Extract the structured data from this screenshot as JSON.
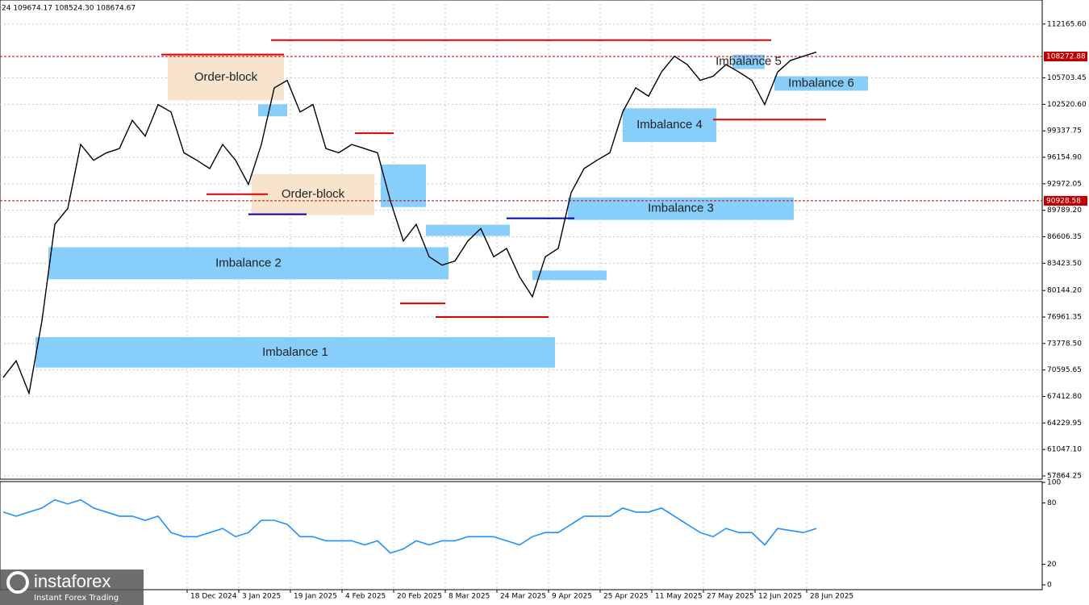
{
  "header_text": "24 109674.17 108524.30 108674.67",
  "logo": {
    "name": "instaforex",
    "tagline": "Instant Forex Trading"
  },
  "chart_data": [
    {
      "type": "line",
      "xlim": [
        "2024-10-21",
        "2025-09-09"
      ],
      "xticks": [
        {
          "value": "2024-12-18",
          "label": "18 Dec 2024"
        },
        {
          "value": "2025-01-03",
          "label": "3 Jan 2025"
        },
        {
          "value": "2025-01-19",
          "label": "19 Jan 2025"
        },
        {
          "value": "2025-02-04",
          "label": "4 Feb 2025"
        },
        {
          "value": "2025-02-20",
          "label": "20 Feb 2025"
        },
        {
          "value": "2025-03-08",
          "label": "8 Mar 2025"
        },
        {
          "value": "2025-03-24",
          "label": "24 Mar 2025"
        },
        {
          "value": "2025-04-09",
          "label": "9 Apr 2025"
        },
        {
          "value": "2025-04-25",
          "label": "25 Apr 2025"
        },
        {
          "value": "2025-05-11",
          "label": "11 May 2025"
        },
        {
          "value": "2025-05-27",
          "label": "27 May 2025"
        },
        {
          "value": "2025-06-12",
          "label": "12 Jun 2025"
        },
        {
          "value": "2025-06-28",
          "label": "28 Jun 2025"
        }
      ],
      "ylim": [
        57478,
        115059
      ],
      "yticks": [
        {
          "value": 112165.6,
          "label": "112165.60"
        },
        {
          "value": 105703.45,
          "label": "105703.45"
        },
        {
          "value": 102520.6,
          "label": "102520.60"
        },
        {
          "value": 99337.75,
          "label": "99337.75"
        },
        {
          "value": 96154.9,
          "label": "96154.90"
        },
        {
          "value": 92972.05,
          "label": "92972.05"
        },
        {
          "value": 89789.2,
          "label": "89789.20"
        },
        {
          "value": 86606.35,
          "label": "86606.35"
        },
        {
          "value": 83423.5,
          "label": "83423.50"
        },
        {
          "value": 80144.2,
          "label": "80144.20"
        },
        {
          "value": 76961.35,
          "label": "76961.35"
        },
        {
          "value": 73778.5,
          "label": "73778.50"
        },
        {
          "value": 70595.65,
          "label": "70595.65"
        },
        {
          "value": 67412.8,
          "label": "67412.80"
        },
        {
          "value": 64229.95,
          "label": "64229.95"
        },
        {
          "value": 61047.1,
          "label": "61047.10"
        },
        {
          "value": 57864.25,
          "label": "57864.25"
        }
      ],
      "grid": true,
      "x": [
        "2024-10-22",
        "2024-10-26",
        "2024-10-30",
        "2024-11-03",
        "2024-11-07",
        "2024-11-11",
        "2024-11-15",
        "2024-11-19",
        "2024-11-23",
        "2024-11-27",
        "2024-12-01",
        "2024-12-05",
        "2024-12-09",
        "2024-12-13",
        "2024-12-17",
        "2024-12-21",
        "2024-12-25",
        "2024-12-29",
        "2025-01-02",
        "2025-01-06",
        "2025-01-10",
        "2025-01-14",
        "2025-01-18",
        "2025-01-22",
        "2025-01-26",
        "2025-01-30",
        "2025-02-03",
        "2025-02-07",
        "2025-02-11",
        "2025-02-15",
        "2025-02-19",
        "2025-02-23",
        "2025-02-27",
        "2025-03-03",
        "2025-03-07",
        "2025-03-11",
        "2025-03-15",
        "2025-03-19",
        "2025-03-23",
        "2025-03-27",
        "2025-03-31",
        "2025-04-04",
        "2025-04-08",
        "2025-04-12",
        "2025-04-16",
        "2025-04-20",
        "2025-04-24",
        "2025-04-28",
        "2025-05-02",
        "2025-05-06",
        "2025-05-10",
        "2025-05-14",
        "2025-05-18",
        "2025-05-22",
        "2025-05-26",
        "2025-05-30",
        "2025-06-03",
        "2025-06-07",
        "2025-06-11",
        "2025-06-15",
        "2025-06-19",
        "2025-06-23",
        "2025-06-27",
        "2025-07-01"
      ],
      "series": [
        {
          "color": "#000000",
          "values": [
            69700,
            71700,
            67800,
            76500,
            88100,
            90000,
            97700,
            95800,
            96700,
            97200,
            100600,
            98700,
            102500,
            101600,
            96700,
            95800,
            94800,
            97700,
            95800,
            92900,
            97700,
            104500,
            105400,
            101600,
            102500,
            97200,
            96700,
            97700,
            97200,
            96700,
            90900,
            86100,
            88100,
            84200,
            83200,
            83700,
            86100,
            87600,
            84200,
            85200,
            81800,
            79400,
            84200,
            85200,
            91900,
            94800,
            95800,
            96700,
            101600,
            104500,
            103500,
            106400,
            108300,
            107300,
            105400,
            105900,
            107300,
            106400,
            105400,
            102500,
            106400,
            107800,
            108300,
            108800
          ]
        }
      ],
      "zones": [
        {
          "label": "Imbalance 1",
          "x0": "2024-11-01",
          "x1": "2025-04-11",
          "y0": 70885,
          "y1": 74550,
          "color": "#87cefa"
        },
        {
          "label": "Imbalance 2",
          "x0": "2024-11-05",
          "x1": "2025-03-09",
          "y0": 81495,
          "y1": 85353,
          "color": "#87cefa"
        },
        {
          "label": "Imbalance 3",
          "x0": "2025-04-15",
          "x1": "2025-06-24",
          "y0": 88632,
          "y1": 91333,
          "color": "#87cefa"
        },
        {
          "label": "Imbalance 4",
          "x0": "2025-05-02",
          "x1": "2025-05-31",
          "y0": 97988,
          "y1": 102039,
          "color": "#87cefa"
        },
        {
          "label": "Imbalance 5",
          "x0": "2025-06-05",
          "x1": "2025-06-15",
          "y0": 106765,
          "y1": 108501,
          "color": "#87cefa"
        },
        {
          "label": "Imbalance 6",
          "x0": "2025-06-18",
          "x1": "2025-07-17",
          "y0": 104160,
          "y1": 105897,
          "color": "#87cefa"
        },
        {
          "label": "Order-block",
          "x0": "2024-12-12",
          "x1": "2025-01-17",
          "y0": 103003,
          "y1": 108501,
          "color": "#f8e4cc"
        },
        {
          "label": "Order-block",
          "x0": "2025-01-07",
          "x1": "2025-02-14",
          "y0": 89211,
          "y1": 94130,
          "color": "#f8e4cc"
        },
        {
          "x0": "2025-01-09",
          "x1": "2025-01-18",
          "y0": 101074,
          "y1": 102521,
          "color": "#87cefa"
        },
        {
          "x0": "2025-02-16",
          "x1": "2025-03-02",
          "y0": 90175,
          "y1": 95287,
          "color": "#87cefa"
        },
        {
          "x0": "2025-03-02",
          "x1": "2025-03-28",
          "y0": 86703,
          "y1": 88053,
          "color": "#87cefa"
        },
        {
          "x0": "2025-04-04",
          "x1": "2025-04-27",
          "y0": 81398,
          "y1": 82556,
          "color": "#87cefa"
        }
      ],
      "levels": [
        {
          "x0": "2025-01-13",
          "x1": "2025-06-17",
          "y": 110237,
          "color": "#e00000"
        },
        {
          "x0": "2024-12-10",
          "x1": "2025-01-17",
          "y": 108501,
          "color": "#e00000"
        },
        {
          "x0": "2025-02-08",
          "x1": "2025-02-20",
          "y": 99049,
          "color": "#e00000"
        },
        {
          "x0": "2024-12-24",
          "x1": "2025-01-12",
          "y": 91719,
          "color": "#e00000"
        },
        {
          "x0": "2025-01-06",
          "x1": "2025-01-24",
          "y": 89307,
          "color": "#0000b0"
        },
        {
          "x0": "2025-03-27",
          "x1": "2025-04-17",
          "y": 88825,
          "color": "#0000b0"
        },
        {
          "x0": "2025-02-22",
          "x1": "2025-03-08",
          "y": 78601,
          "color": "#e00000"
        },
        {
          "x0": "2025-03-05",
          "x1": "2025-04-09",
          "y": 76962,
          "color": "#e00000"
        },
        {
          "x0": "2025-05-30",
          "x1": "2025-07-04",
          "y": 100688,
          "color": "#e00000"
        }
      ],
      "hlines": [
        {
          "value": 108272.88,
          "color": "#c00000"
        },
        {
          "value": 90928.58,
          "color": "#c00000"
        }
      ]
    },
    {
      "type": "line",
      "ylim": [
        0,
        100
      ],
      "yticks": [
        100,
        80,
        20,
        0
      ],
      "series": [
        {
          "color": "#1e90ff",
          "values": [
            71,
            67,
            71,
            75,
            83,
            79,
            83,
            75,
            71,
            67,
            67,
            63,
            67,
            51,
            47,
            47,
            51,
            55,
            47,
            51,
            63,
            63,
            59,
            47,
            47,
            43,
            43,
            43,
            39,
            43,
            31,
            35,
            43,
            39,
            43,
            43,
            47,
            47,
            47,
            43,
            39,
            47,
            51,
            51,
            59,
            67,
            67,
            67,
            75,
            71,
            71,
            75,
            67,
            59,
            51,
            47,
            55,
            51,
            51,
            39,
            55,
            53,
            51,
            55
          ]
        }
      ]
    }
  ]
}
